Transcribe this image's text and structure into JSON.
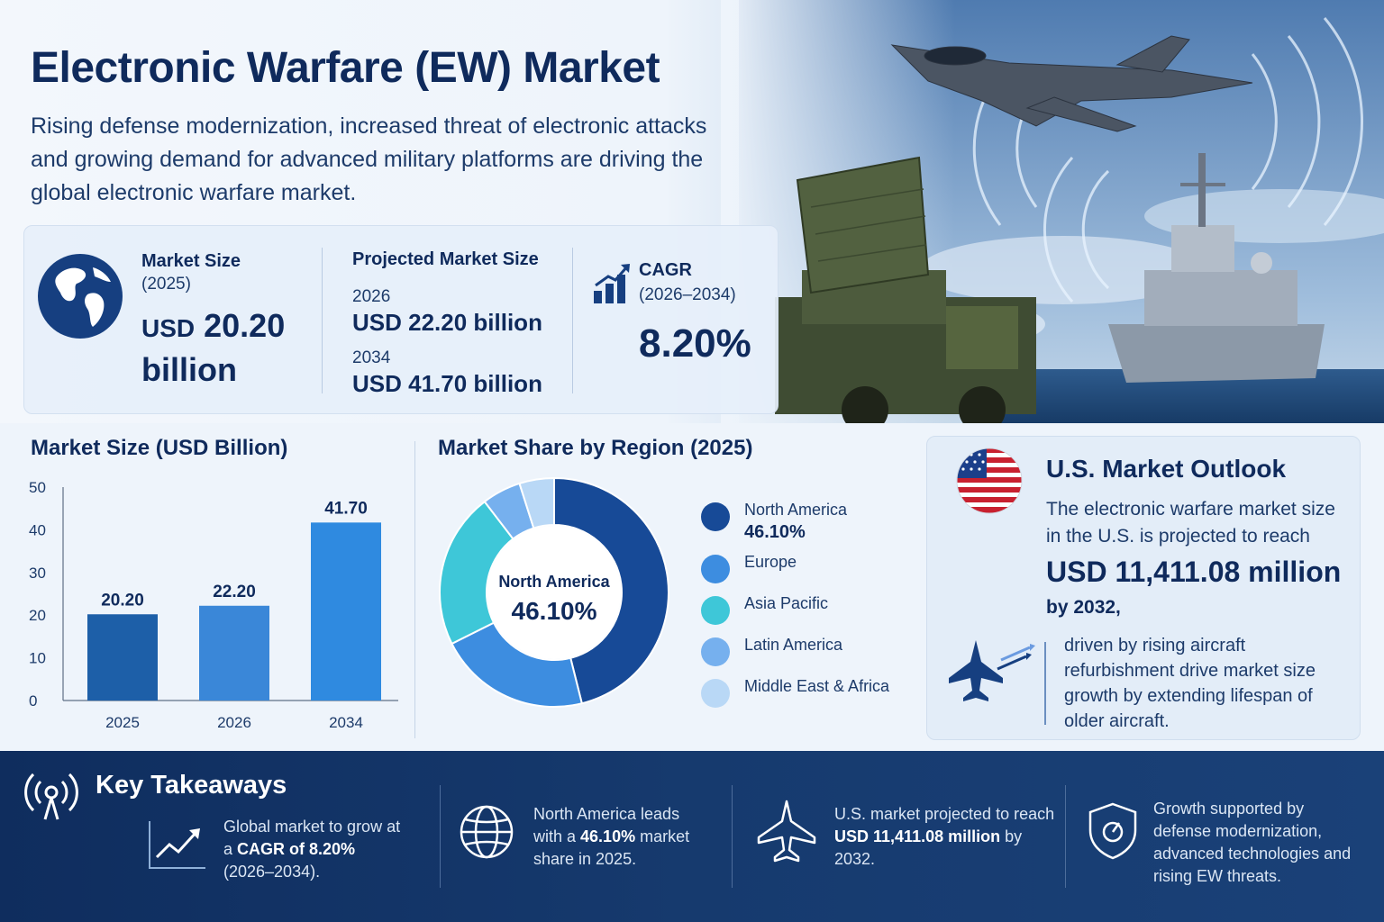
{
  "header": {
    "title": "Electronic Warfare (EW) Market",
    "subtitle": "Rising defense modernization, increased threat of electronic attacks and growing demand for advanced military platforms are driving the global electronic warfare market."
  },
  "kpis": {
    "market_size_label": "Market Size",
    "market_size_year": "(2025)",
    "market_size_value_prefix": "USD",
    "market_size_value": "20.20",
    "market_size_unit": "billion",
    "projected_label": "Projected Market Size",
    "projected": [
      {
        "year": "2026",
        "value": "USD 22.20 billion"
      },
      {
        "year": "2034",
        "value": "USD 41.70 billion"
      }
    ],
    "cagr_label": "CAGR",
    "cagr_period": "(2026–2034)",
    "cagr_value": "8.20%"
  },
  "chart_data": [
    {
      "type": "bar",
      "title": "Market Size (USD Billion)",
      "categories": [
        "2025",
        "2026",
        "2034"
      ],
      "values": [
        20.2,
        22.2,
        41.7
      ],
      "value_labels": [
        "20.20",
        "22.20",
        "41.70"
      ],
      "yticks": [
        "0",
        "10",
        "20",
        "30",
        "40",
        "50"
      ],
      "ylim": [
        0,
        50
      ],
      "colors": [
        "#1d5fa8",
        "#3a87d8",
        "#2f8ae0"
      ]
    },
    {
      "type": "pie",
      "title": "Market Share by Region (2025)",
      "center_label": "North America",
      "center_value": "46.10%",
      "labels": [
        "North America",
        "Europe",
        "Asia Pacific",
        "Latin America",
        "Middle East & Africa"
      ],
      "values": [
        46.1,
        21.5,
        22.0,
        5.5,
        4.9
      ],
      "first_value_label": "46.10%",
      "colors": [
        "#174a97",
        "#3d8de0",
        "#3ec7d8",
        "#76b0ee",
        "#b9d8f6"
      ]
    }
  ],
  "us": {
    "title": "U.S. Market Outlook",
    "text": "The electronic warfare market size in the U.S. is projected to reach",
    "value": "USD 11,411.08 million",
    "by": "by 2032,",
    "driver": "driven by rising aircraft refurbishment drive market size growth by extending lifespan of older aircraft."
  },
  "takeaways": {
    "title": "Key Takeaways",
    "items": [
      {
        "pre": "Global market to grow at a ",
        "bold": "CAGR of 8.20%",
        "post": " (2026–2034)."
      },
      {
        "pre": "North America leads with a ",
        "bold": "46.10%",
        "post": " market share in 2025."
      },
      {
        "pre": "U.S. market projected to reach ",
        "bold": "USD 11,411.08 million",
        "post": " by 2032."
      },
      {
        "pre": "Growth supported by defense modernization, advanced technologies and rising EW threats.",
        "bold": "",
        "post": ""
      }
    ]
  },
  "icons": [
    "globe-icon",
    "growth-chart-icon",
    "us-flag-icon",
    "fighter-jet-icon",
    "radar-signal-icon",
    "trend-arrow-icon",
    "shield-icon"
  ]
}
